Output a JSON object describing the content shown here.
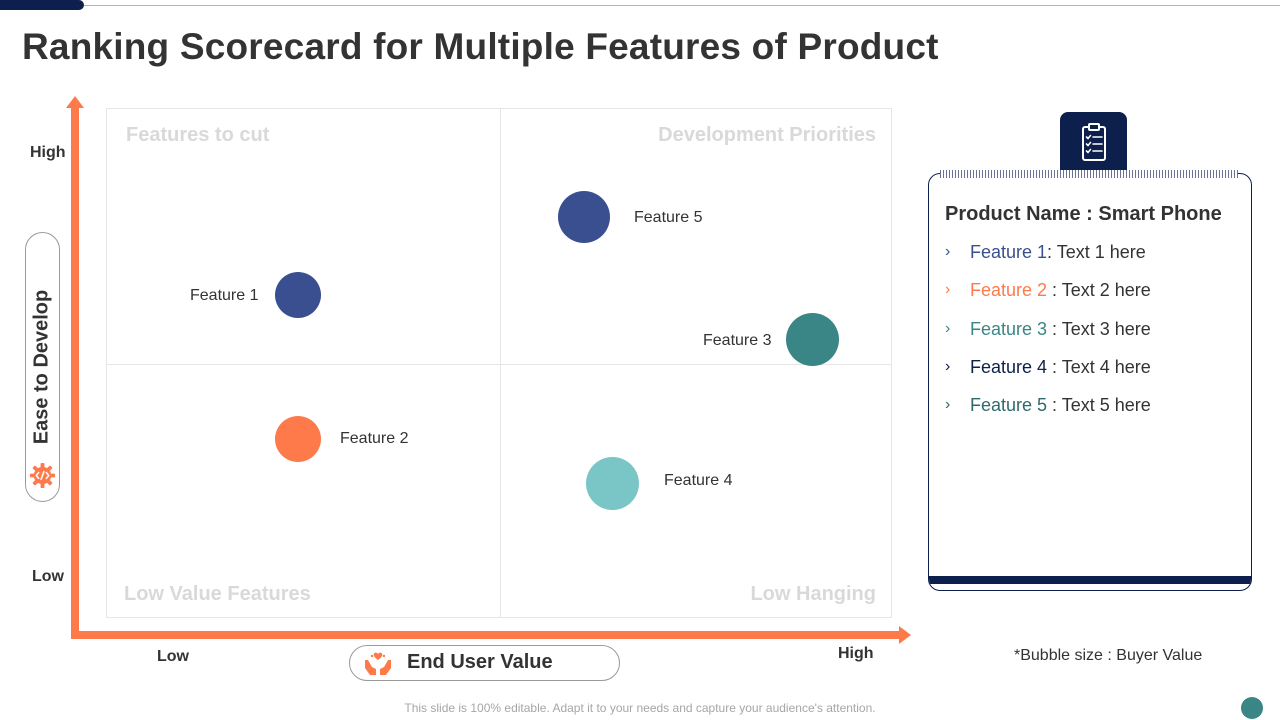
{
  "title": "Ranking Scorecard for Multiple Features of Product",
  "quadrants": {
    "top_left": "Features to cut",
    "top_right": "Development Priorities",
    "bottom_left": "Low Value Features",
    "bottom_right": "Low Hanging"
  },
  "y_axis": {
    "title": "Ease to Develop",
    "high": "High",
    "low": "Low",
    "icon": "gear-code-icon"
  },
  "x_axis": {
    "title": "End User Value",
    "low": "Low",
    "high": "High",
    "icon": "hands-heart-icon"
  },
  "bubbles": {
    "feature1": {
      "label": "Feature 1",
      "color": "#3a4f8f"
    },
    "feature2": {
      "label": "Feature 2",
      "color": "#ff7a4a"
    },
    "feature3": {
      "label": "Feature 3",
      "color": "#3a8585"
    },
    "feature4": {
      "label": "Feature 4",
      "color": "#7ac5c5"
    },
    "feature5": {
      "label": "Feature 5",
      "color": "#3a4f8f"
    }
  },
  "panel": {
    "title": "Product Name : Smart Phone",
    "icon": "clipboard-checklist-icon",
    "items": [
      {
        "name": "Feature 1",
        "sep": ": ",
        "text": "Text 1 here",
        "color": "#3a4f8f"
      },
      {
        "name": "Feature 2",
        "sep": " : ",
        "text": "Text 2 here",
        "color": "#ff7a4a"
      },
      {
        "name": "Feature 3",
        "sep": " : ",
        "text": "Text 3 here",
        "color": "#3a8585"
      },
      {
        "name": "Feature 4",
        "sep": " : ",
        "text": "Text 4 here",
        "color": "#0d1f4d"
      },
      {
        "name": "Feature 5",
        "sep": " : ",
        "text": "Text 5 here",
        "color": "#2f6a6a"
      }
    ]
  },
  "footnote": "*Bubble size : Buyer Value",
  "disclaimer": "This slide is 100% editable. Adapt it to your needs and capture your audience's attention.",
  "colors": {
    "axis": "#ff7a4a",
    "navy": "#0d1f4d",
    "teal": "#3a8585"
  }
}
